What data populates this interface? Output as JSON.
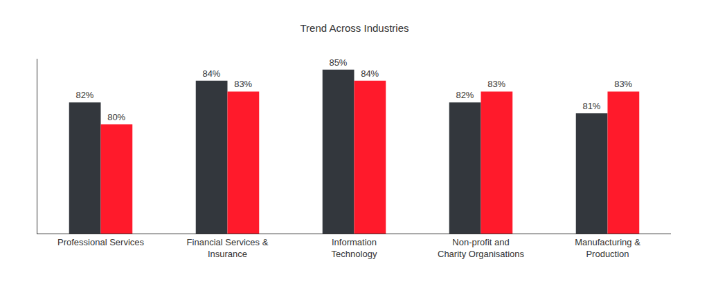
{
  "chart_data": {
    "type": "bar",
    "title": "Trend Across Industries",
    "categories": [
      "Professional Services",
      "Financial Services &\nInsurance",
      "Information\nTechnology",
      "Non-profit and\nCharity Organisations",
      "Manufacturing &\nProduction"
    ],
    "series": [
      {
        "color": "#33373d",
        "values": [
          82,
          84,
          85,
          82,
          81
        ],
        "value_labels": [
          "82%",
          "84%",
          "85%",
          "82%",
          "81%"
        ]
      },
      {
        "color": "#ff1a2b",
        "values": [
          80,
          83,
          84,
          83,
          83
        ],
        "value_labels": [
          "80%",
          "83%",
          "84%",
          "83%",
          "83%"
        ]
      }
    ],
    "ylim": [
      70,
      86
    ],
    "yticks": [],
    "grid": false,
    "data_labels": true,
    "tick_labels": "x"
  }
}
